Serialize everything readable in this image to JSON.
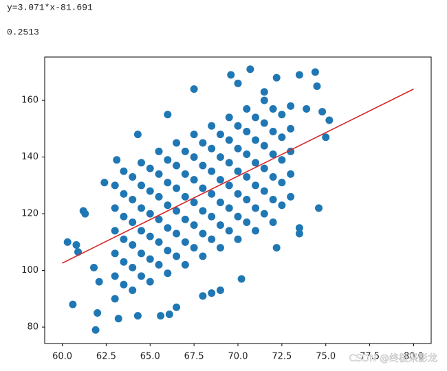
{
  "output_lines": [
    "y=3.071*x-81.691",
    "0.2513"
  ],
  "watermark": "CSDN @终极采影龙",
  "chart_data": {
    "type": "scatter",
    "series": [
      {
        "type": "scatter",
        "color": "#1f77b4",
        "x": [
          63,
          63,
          63,
          63,
          63,
          63,
          63.5,
          63.5,
          63.5,
          63.5,
          63.5,
          63.5,
          64,
          64,
          64,
          64,
          64,
          64,
          64.5,
          64.5,
          64.5,
          64.5,
          64.5,
          64.5,
          65,
          65,
          65,
          65,
          65,
          65,
          65.5,
          65.5,
          65.5,
          65.5,
          65.5,
          65.5,
          66,
          66,
          66,
          66,
          66,
          66,
          66.5,
          66.5,
          66.5,
          66.5,
          66.5,
          66.5,
          67,
          67,
          67,
          67,
          67,
          67,
          67.5,
          67.5,
          67.5,
          67.5,
          67.5,
          67.5,
          68,
          68,
          68,
          68,
          68,
          68,
          68.5,
          68.5,
          68.5,
          68.5,
          68.5,
          68.5,
          69,
          69,
          69,
          69,
          69,
          69,
          69.5,
          69.5,
          69.5,
          69.5,
          69.5,
          69.5,
          70,
          70,
          70,
          70,
          70,
          70,
          70.5,
          70.5,
          70.5,
          70.5,
          70.5,
          70.5,
          71,
          71,
          71,
          71,
          71,
          71,
          71.5,
          71.5,
          71.5,
          71.5,
          71.5,
          71.5,
          72,
          72,
          72,
          72,
          72,
          72,
          72.5,
          72.5,
          72.5,
          72.5,
          72.5,
          73,
          73,
          73,
          73,
          73,
          60.3,
          60.8,
          60.6,
          60.9,
          61.2,
          61.3,
          61.8,
          62,
          61.9,
          62.1,
          63.2,
          64.3,
          65.6,
          66.1,
          66.5,
          68,
          68.5,
          69,
          70.2,
          72.2,
          73.5,
          73.5,
          74.6,
          75,
          74.4,
          74.5,
          73.5,
          72.2,
          70.7,
          69.6,
          67.5,
          66,
          64.3,
          63.1,
          62.4,
          74.8,
          75.2,
          73.9,
          70,
          71.5
        ],
        "y": [
          90,
          98,
          106,
          114,
          122,
          130,
          95,
          103,
          111,
          119,
          127,
          135,
          93,
          101,
          109,
          117,
          125,
          133,
          98,
          106,
          114,
          122,
          130,
          138,
          96,
          104,
          112,
          120,
          128,
          136,
          102,
          110,
          118,
          126,
          134,
          142,
          99,
          107,
          115,
          123,
          131,
          139,
          105,
          113,
          121,
          129,
          137,
          145,
          102,
          110,
          118,
          126,
          134,
          142,
          108,
          116,
          124,
          132,
          140,
          148,
          105,
          113,
          121,
          129,
          137,
          145,
          111,
          119,
          127,
          135,
          143,
          151,
          108,
          116,
          124,
          132,
          140,
          148,
          114,
          122,
          130,
          138,
          146,
          154,
          111,
          119,
          127,
          135,
          143,
          151,
          117,
          125,
          133,
          141,
          149,
          157,
          114,
          122,
          130,
          138,
          146,
          154,
          120,
          128,
          136,
          144,
          152,
          160,
          117,
          125,
          133,
          141,
          149,
          157,
          123,
          131,
          139,
          147,
          155,
          126,
          134,
          142,
          150,
          158,
          110,
          109,
          88,
          106.5,
          121,
          120,
          101,
          85,
          79,
          96,
          83,
          84,
          84,
          84.5,
          87,
          91,
          92,
          93,
          97,
          108,
          113,
          115,
          122,
          147,
          170,
          165,
          169,
          168,
          171,
          169,
          164,
          155,
          148,
          139,
          131,
          156,
          153,
          157,
          166,
          163
        ]
      },
      {
        "type": "line",
        "color": "#d62728",
        "x": [
          60,
          80
        ],
        "y": [
          102.569,
          163.989
        ]
      }
    ],
    "xlim": [
      59,
      81
    ],
    "ylim": [
      74.2,
      175.3
    ],
    "xticks": [
      {
        "value": 60,
        "label": "60.0"
      },
      {
        "value": 62.5,
        "label": "62.5"
      },
      {
        "value": 65,
        "label": "65.0"
      },
      {
        "value": 67.5,
        "label": "67.5"
      },
      {
        "value": 70,
        "label": "70.0"
      },
      {
        "value": 72.5,
        "label": "72.5"
      },
      {
        "value": 75,
        "label": "75.0"
      },
      {
        "value": 77.5,
        "label": "77.5"
      },
      {
        "value": 80,
        "label": "80.0"
      }
    ],
    "yticks": [
      80,
      100,
      120,
      140,
      160
    ]
  }
}
